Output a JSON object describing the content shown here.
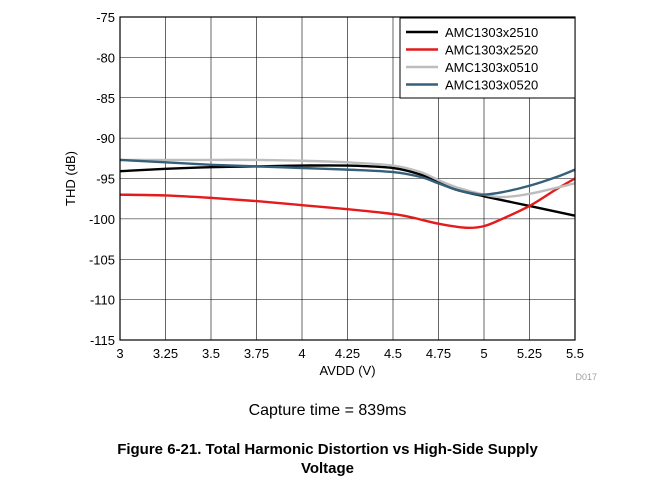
{
  "chart_data": {
    "type": "line",
    "xlabel": "AVDD (V)",
    "ylabel": "THD (dB)",
    "xlim": [
      3,
      5.5
    ],
    "ylim": [
      -115,
      -75
    ],
    "xticks": [
      "3",
      "3.25",
      "3.5",
      "3.75",
      "4",
      "4.25",
      "4.5",
      "4.75",
      "5",
      "5.25",
      "5.5"
    ],
    "yticks": [
      "-75",
      "-80",
      "-85",
      "-90",
      "-95",
      "-100",
      "-105",
      "-110",
      "-115"
    ],
    "grid": true,
    "legend_position": "top-right",
    "figure_code": "D017",
    "series": [
      {
        "name": "AMC1303x2510",
        "color": "#000000",
        "x": [
          3,
          3.25,
          3.5,
          3.75,
          4,
          4.25,
          4.5,
          4.65,
          4.75,
          4.85,
          5,
          5.25,
          5.5
        ],
        "y": [
          -94.1,
          -93.8,
          -93.6,
          -93.5,
          -93.4,
          -93.4,
          -93.7,
          -94.5,
          -95.5,
          -96.4,
          -97.2,
          -98.4,
          -99.6
        ]
      },
      {
        "name": "AMC1303x2520",
        "color": "#e41a1c",
        "x": [
          3,
          3.25,
          3.5,
          3.75,
          4,
          4.25,
          4.5,
          4.6,
          4.75,
          4.9,
          5,
          5.1,
          5.25,
          5.4,
          5.5
        ],
        "y": [
          -97.0,
          -97.1,
          -97.4,
          -97.8,
          -98.3,
          -98.8,
          -99.4,
          -99.8,
          -100.6,
          -101.1,
          -100.9,
          -100.0,
          -98.4,
          -96.3,
          -95.0
        ]
      },
      {
        "name": "AMC1303x0510",
        "color": "#bdbdbd",
        "x": [
          3,
          3.25,
          3.5,
          3.75,
          4,
          4.25,
          4.5,
          4.65,
          4.75,
          4.85,
          5,
          5.1,
          5.25,
          5.5
        ],
        "y": [
          -92.7,
          -92.7,
          -92.7,
          -92.7,
          -92.8,
          -93.0,
          -93.4,
          -94.2,
          -95.2,
          -96.1,
          -97.0,
          -97.3,
          -96.9,
          -95.6
        ]
      },
      {
        "name": "AMC1303x0520",
        "color": "#36607a",
        "x": [
          3,
          3.25,
          3.5,
          3.75,
          4,
          4.25,
          4.5,
          4.65,
          4.75,
          4.85,
          4.95,
          5,
          5.1,
          5.25,
          5.4,
          5.5
        ],
        "y": [
          -92.7,
          -93.0,
          -93.3,
          -93.5,
          -93.7,
          -93.9,
          -94.2,
          -94.8,
          -95.6,
          -96.4,
          -96.9,
          -97.0,
          -96.7,
          -95.9,
          -94.8,
          -93.9
        ]
      }
    ]
  },
  "caption": {
    "capture_time": "Capture time = 839ms",
    "figure_title_line1": "Figure 6-21. Total Harmonic Distortion vs High-Side Supply",
    "figure_title_line2": "Voltage"
  }
}
